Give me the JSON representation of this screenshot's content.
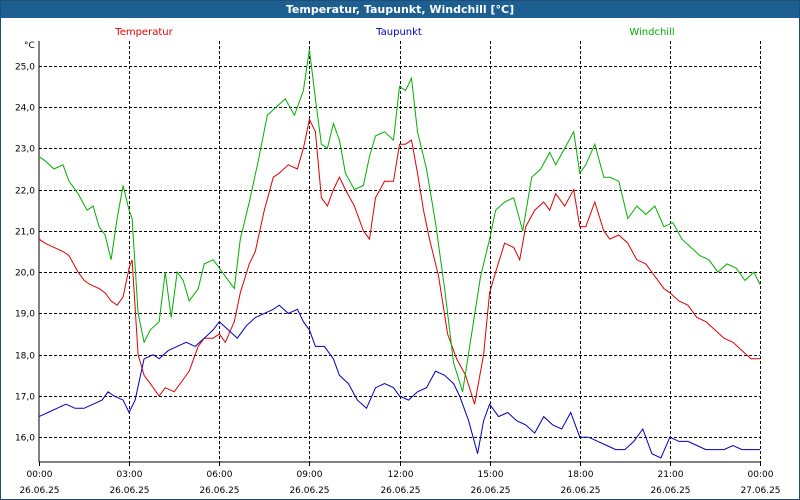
{
  "window": {
    "title": "Temperatur, Taupunkt, Windchill [°C]"
  },
  "chart_data": {
    "type": "line",
    "title": "Temperatur, Taupunkt, Windchill [°C]",
    "ylabel": "°C",
    "ylim": [
      15.4,
      25.6
    ],
    "yticks": [
      16,
      17,
      18,
      19,
      20,
      21,
      22,
      23,
      24,
      25
    ],
    "ytick_labels": [
      "16,0",
      "17,0",
      "18,0",
      "19,0",
      "20,0",
      "21,0",
      "22,0",
      "23,0",
      "24,0",
      "25,0"
    ],
    "xlim": [
      0,
      24
    ],
    "xticks": [
      0,
      3,
      6,
      9,
      12,
      15,
      18,
      21,
      24
    ],
    "xtick_times": [
      "00:00",
      "03:00",
      "06:00",
      "09:00",
      "12:00",
      "15:00",
      "18:00",
      "21:00",
      "00:00"
    ],
    "xtick_dates": [
      "26.06.25",
      "26.06.25",
      "26.06.25",
      "26.06.25",
      "26.06.25",
      "26.06.25",
      "26.06.25",
      "26.06.25",
      "27.06.25"
    ],
    "grid": true,
    "legend_position": "top",
    "series": [
      {
        "name": "Temperatur",
        "color": "#e00000",
        "x": [
          0,
          0.2,
          0.5,
          0.8,
          1.0,
          1.3,
          1.5,
          1.7,
          2.0,
          2.2,
          2.4,
          2.6,
          2.8,
          3.0,
          3.1,
          3.3,
          3.5,
          3.7,
          4.0,
          4.2,
          4.5,
          4.8,
          5.0,
          5.3,
          5.5,
          5.8,
          6.0,
          6.2,
          6.5,
          6.7,
          7.0,
          7.2,
          7.5,
          7.8,
          8.0,
          8.3,
          8.6,
          8.8,
          9.0,
          9.2,
          9.4,
          9.6,
          9.8,
          10.0,
          10.2,
          10.5,
          10.8,
          11.0,
          11.2,
          11.5,
          11.8,
          12.0,
          12.2,
          12.4,
          12.6,
          12.8,
          13.0,
          13.3,
          13.6,
          13.9,
          14.2,
          14.5,
          14.8,
          15.0,
          15.2,
          15.5,
          15.8,
          16.0,
          16.2,
          16.5,
          16.8,
          17.0,
          17.2,
          17.5,
          17.8,
          18.0,
          18.2,
          18.5,
          18.8,
          19.0,
          19.3,
          19.6,
          19.9,
          20.2,
          20.5,
          20.8,
          21.0,
          21.3,
          21.6,
          21.9,
          22.2,
          22.5,
          22.8,
          23.1,
          23.4,
          23.7,
          24.0
        ],
        "values": [
          20.8,
          20.7,
          20.6,
          20.5,
          20.4,
          20.0,
          19.8,
          19.7,
          19.6,
          19.5,
          19.3,
          19.2,
          19.4,
          20.1,
          20.3,
          18.0,
          17.5,
          17.3,
          17.0,
          17.2,
          17.1,
          17.4,
          17.6,
          18.2,
          18.4,
          18.4,
          18.5,
          18.3,
          18.8,
          19.5,
          20.2,
          20.5,
          21.5,
          22.3,
          22.4,
          22.6,
          22.5,
          23.0,
          23.7,
          23.4,
          21.8,
          21.6,
          22.0,
          22.3,
          22.0,
          21.6,
          21.0,
          20.8,
          21.8,
          22.2,
          22.2,
          23.1,
          23.1,
          23.2,
          22.4,
          21.5,
          20.8,
          19.9,
          18.5,
          17.9,
          17.5,
          16.8,
          18.0,
          19.5,
          20.0,
          20.7,
          20.6,
          20.3,
          21.1,
          21.5,
          21.7,
          21.5,
          21.9,
          21.6,
          22.0,
          21.1,
          21.1,
          21.7,
          21.0,
          20.8,
          20.9,
          20.7,
          20.3,
          20.2,
          19.9,
          19.6,
          19.5,
          19.3,
          19.2,
          18.9,
          18.8,
          18.6,
          18.4,
          18.3,
          18.1,
          17.9,
          17.9
        ]
      },
      {
        "name": "Taupunkt",
        "color": "#0000c0",
        "x": [
          0,
          0.3,
          0.6,
          0.9,
          1.2,
          1.5,
          1.8,
          2.1,
          2.3,
          2.5,
          2.8,
          3.0,
          3.2,
          3.5,
          3.8,
          4.0,
          4.3,
          4.6,
          4.9,
          5.2,
          5.5,
          5.8,
          6.0,
          6.3,
          6.6,
          6.9,
          7.2,
          7.5,
          7.8,
          8.0,
          8.3,
          8.6,
          8.8,
          9.0,
          9.2,
          9.5,
          9.8,
          10.0,
          10.3,
          10.6,
          10.9,
          11.2,
          11.5,
          11.8,
          12.0,
          12.3,
          12.6,
          12.9,
          13.2,
          13.5,
          13.8,
          14.0,
          14.3,
          14.6,
          14.8,
          15.0,
          15.3,
          15.6,
          15.9,
          16.2,
          16.5,
          16.8,
          17.1,
          17.4,
          17.7,
          18.0,
          18.3,
          18.6,
          18.9,
          19.2,
          19.5,
          19.8,
          20.1,
          20.4,
          20.7,
          21.0,
          21.3,
          21.6,
          21.9,
          22.2,
          22.5,
          22.8,
          23.1,
          23.4,
          23.7,
          24.0
        ],
        "values": [
          16.5,
          16.6,
          16.7,
          16.8,
          16.7,
          16.7,
          16.8,
          16.9,
          17.1,
          17.0,
          16.9,
          16.6,
          16.9,
          17.9,
          18.0,
          17.9,
          18.1,
          18.2,
          18.3,
          18.2,
          18.4,
          18.6,
          18.8,
          18.6,
          18.4,
          18.7,
          18.9,
          19.0,
          19.1,
          19.2,
          19.0,
          19.1,
          18.8,
          18.6,
          18.2,
          18.2,
          17.9,
          17.5,
          17.3,
          16.9,
          16.7,
          17.2,
          17.3,
          17.2,
          17.0,
          16.9,
          17.1,
          17.2,
          17.6,
          17.5,
          17.3,
          17.0,
          16.4,
          15.6,
          16.4,
          16.8,
          16.5,
          16.6,
          16.4,
          16.3,
          16.1,
          16.5,
          16.3,
          16.2,
          16.6,
          16.0,
          16.0,
          15.9,
          15.8,
          15.7,
          15.7,
          15.9,
          16.2,
          15.6,
          15.5,
          16.0,
          15.9,
          15.9,
          15.8,
          15.7,
          15.7,
          15.7,
          15.8,
          15.7,
          15.7,
          15.7
        ]
      },
      {
        "name": "Windchill",
        "color": "#00b000",
        "x": [
          0,
          0.2,
          0.5,
          0.8,
          1.0,
          1.3,
          1.6,
          1.8,
          2.0,
          2.2,
          2.4,
          2.6,
          2.8,
          3.0,
          3.1,
          3.3,
          3.5,
          3.7,
          4.0,
          4.2,
          4.4,
          4.6,
          4.8,
          5.0,
          5.3,
          5.5,
          5.8,
          6.0,
          6.2,
          6.5,
          6.7,
          7.0,
          7.3,
          7.6,
          7.9,
          8.2,
          8.5,
          8.8,
          9.0,
          9.2,
          9.4,
          9.6,
          9.8,
          10.0,
          10.2,
          10.5,
          10.8,
          11.0,
          11.2,
          11.5,
          11.8,
          12.0,
          12.2,
          12.4,
          12.6,
          12.9,
          13.2,
          13.5,
          13.8,
          14.1,
          14.4,
          14.7,
          15.0,
          15.2,
          15.5,
          15.8,
          16.1,
          16.4,
          16.7,
          17.0,
          17.2,
          17.5,
          17.8,
          18.0,
          18.2,
          18.5,
          18.8,
          19.0,
          19.3,
          19.6,
          19.9,
          20.2,
          20.5,
          20.8,
          21.1,
          21.4,
          21.7,
          22.0,
          22.3,
          22.6,
          22.9,
          23.2,
          23.5,
          23.8,
          24.0
        ],
        "values": [
          22.8,
          22.7,
          22.5,
          22.6,
          22.2,
          21.9,
          21.5,
          21.6,
          21.1,
          20.9,
          20.3,
          21.3,
          22.1,
          21.5,
          21.3,
          19.0,
          18.3,
          18.6,
          18.8,
          20.0,
          18.9,
          20.0,
          19.8,
          19.3,
          19.6,
          20.2,
          20.3,
          20.1,
          19.9,
          19.6,
          20.8,
          21.7,
          22.7,
          23.8,
          24.0,
          24.2,
          23.8,
          24.4,
          25.4,
          24.2,
          23.1,
          23.0,
          23.6,
          23.2,
          22.4,
          22.0,
          22.1,
          22.8,
          23.3,
          23.4,
          23.2,
          24.5,
          24.4,
          24.7,
          23.4,
          22.5,
          21.2,
          19.6,
          17.8,
          17.1,
          18.5,
          19.9,
          20.8,
          21.5,
          21.7,
          21.8,
          21.0,
          22.3,
          22.5,
          22.9,
          22.6,
          23.0,
          23.4,
          22.4,
          22.6,
          23.1,
          22.3,
          22.3,
          22.2,
          21.3,
          21.6,
          21.4,
          21.6,
          21.1,
          21.2,
          20.8,
          20.6,
          20.4,
          20.3,
          20.0,
          20.2,
          20.1,
          19.8,
          20.0,
          19.7
        ]
      }
    ]
  }
}
